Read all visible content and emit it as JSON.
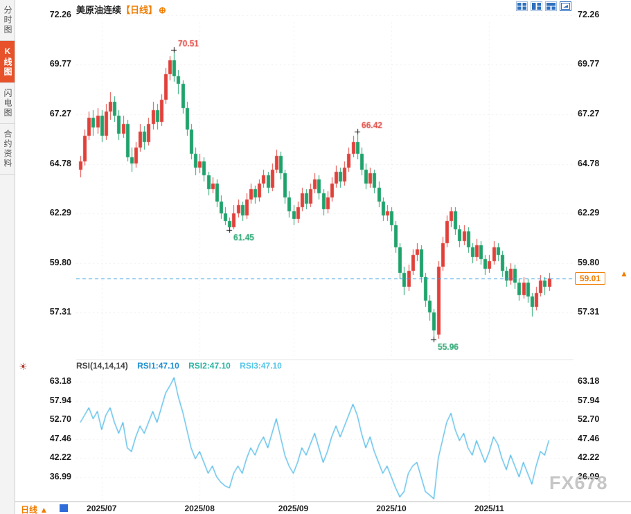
{
  "app": {
    "sidebar": {
      "tabs": [
        {
          "label": "分时图",
          "active": false
        },
        {
          "label": "K线图",
          "active": true
        },
        {
          "label": "闪电图",
          "active": false
        },
        {
          "label": "合约资料",
          "active": false
        }
      ]
    },
    "header": {
      "symbol": "美原油连续",
      "period_bracket": "【日线】",
      "add_label": "⊕"
    },
    "bottom": {
      "period_label": "日线 ▲"
    },
    "watermark": "FX678",
    "price_arrow": "▲"
  },
  "rsi_header": {
    "name": "RSI(14,14,14)",
    "r1": "RSI1:47.10",
    "r2": "RSI2:47.10",
    "r3": "RSI3:47.10"
  },
  "chart_data": {
    "type": "candlestick",
    "symbol": "美原油连续",
    "period": "日线",
    "price_axis": [
      72.26,
      69.77,
      67.27,
      64.78,
      62.29,
      59.8,
      57.31
    ],
    "rsi_axis": [
      63.18,
      57.94,
      52.7,
      47.46,
      42.22,
      36.99
    ],
    "months": [
      {
        "label": "2025/07",
        "index": 5
      },
      {
        "label": "2025/08",
        "index": 28
      },
      {
        "label": "2025/09",
        "index": 50
      },
      {
        "label": "2025/10",
        "index": 73
      },
      {
        "label": "2025/11",
        "index": 96
      }
    ],
    "current_price": 59.01,
    "current_price_label": "59.01",
    "annotations": [
      {
        "index": 22,
        "price": 70.51,
        "text": "70.51",
        "kind": "high"
      },
      {
        "index": 35,
        "price": 61.45,
        "text": "61.45",
        "kind": "low"
      },
      {
        "index": 65,
        "price": 66.42,
        "text": "66.42",
        "kind": "high"
      },
      {
        "index": 83,
        "price": 55.96,
        "text": "55.96",
        "kind": "low"
      }
    ],
    "candles": [
      [
        64.5,
        65.2,
        64.1,
        64.9
      ],
      [
        64.9,
        66.5,
        64.7,
        66.2
      ],
      [
        66.2,
        67.4,
        66.0,
        67.1
      ],
      [
        67.1,
        67.5,
        66.2,
        66.6
      ],
      [
        66.6,
        67.6,
        66.3,
        67.2
      ],
      [
        67.2,
        67.5,
        65.9,
        66.2
      ],
      [
        66.2,
        67.8,
        66.0,
        67.4
      ],
      [
        67.4,
        68.4,
        67.0,
        67.9
      ],
      [
        67.9,
        68.2,
        66.9,
        67.2
      ],
      [
        67.2,
        67.5,
        66.0,
        66.3
      ],
      [
        66.3,
        67.2,
        66.1,
        66.8
      ],
      [
        66.8,
        67.0,
        64.9,
        65.1
      ],
      [
        65.1,
        65.6,
        64.4,
        64.8
      ],
      [
        64.8,
        65.9,
        64.6,
        65.6
      ],
      [
        65.6,
        66.8,
        65.4,
        66.4
      ],
      [
        66.4,
        66.7,
        65.5,
        65.9
      ],
      [
        65.9,
        67.1,
        65.7,
        66.8
      ],
      [
        66.8,
        67.9,
        66.5,
        67.5
      ],
      [
        67.5,
        67.8,
        66.5,
        66.9
      ],
      [
        66.9,
        68.3,
        66.7,
        68.0
      ],
      [
        68.0,
        69.6,
        67.8,
        69.3
      ],
      [
        69.3,
        70.2,
        69.0,
        70.0
      ],
      [
        70.0,
        70.51,
        68.9,
        69.2
      ],
      [
        69.2,
        69.5,
        68.3,
        68.8
      ],
      [
        68.8,
        69.0,
        67.3,
        67.6
      ],
      [
        67.6,
        67.9,
        66.2,
        66.5
      ],
      [
        66.5,
        66.8,
        65.0,
        65.3
      ],
      [
        65.3,
        65.6,
        64.2,
        64.6
      ],
      [
        64.6,
        65.3,
        64.3,
        64.9
      ],
      [
        64.9,
        65.1,
        63.9,
        64.2
      ],
      [
        64.2,
        64.4,
        63.2,
        63.5
      ],
      [
        63.5,
        64.1,
        63.3,
        63.8
      ],
      [
        63.8,
        64.0,
        62.6,
        62.9
      ],
      [
        62.9,
        63.2,
        62.0,
        62.3
      ],
      [
        62.3,
        62.6,
        61.7,
        61.9
      ],
      [
        61.9,
        62.1,
        61.45,
        61.6
      ],
      [
        61.6,
        62.7,
        61.5,
        62.3
      ],
      [
        62.3,
        63.0,
        62.1,
        62.7
      ],
      [
        62.7,
        62.9,
        61.9,
        62.2
      ],
      [
        62.2,
        63.3,
        62.0,
        63.0
      ],
      [
        63.0,
        63.8,
        62.8,
        63.5
      ],
      [
        63.5,
        63.7,
        62.8,
        63.1
      ],
      [
        63.1,
        64.0,
        62.9,
        63.8
      ],
      [
        63.8,
        64.5,
        63.6,
        64.2
      ],
      [
        64.2,
        64.4,
        63.3,
        63.6
      ],
      [
        63.6,
        64.8,
        63.4,
        64.5
      ],
      [
        64.5,
        65.5,
        64.3,
        65.2
      ],
      [
        65.2,
        65.4,
        64.0,
        64.3
      ],
      [
        64.3,
        64.5,
        62.8,
        63.1
      ],
      [
        63.1,
        63.4,
        62.1,
        62.4
      ],
      [
        62.4,
        62.7,
        61.7,
        62.0
      ],
      [
        62.0,
        62.9,
        61.8,
        62.6
      ],
      [
        62.6,
        63.6,
        62.4,
        63.3
      ],
      [
        63.3,
        63.5,
        62.5,
        62.8
      ],
      [
        62.8,
        63.8,
        62.6,
        63.5
      ],
      [
        63.5,
        64.3,
        63.3,
        64.0
      ],
      [
        64.0,
        64.2,
        63.0,
        63.3
      ],
      [
        63.3,
        63.5,
        62.2,
        62.5
      ],
      [
        62.5,
        63.4,
        62.3,
        63.1
      ],
      [
        63.1,
        64.1,
        62.9,
        63.8
      ],
      [
        63.8,
        64.7,
        63.6,
        64.4
      ],
      [
        64.4,
        64.6,
        63.6,
        63.9
      ],
      [
        63.9,
        64.9,
        63.7,
        64.6
      ],
      [
        64.6,
        65.6,
        64.4,
        65.3
      ],
      [
        65.3,
        66.2,
        65.1,
        65.9
      ],
      [
        65.9,
        66.42,
        65.0,
        65.3
      ],
      [
        65.3,
        65.6,
        64.2,
        64.5
      ],
      [
        64.5,
        64.8,
        63.5,
        63.8
      ],
      [
        63.8,
        64.6,
        63.6,
        64.3
      ],
      [
        64.3,
        64.5,
        63.3,
        63.6
      ],
      [
        63.6,
        63.9,
        62.6,
        62.9
      ],
      [
        62.9,
        63.1,
        61.9,
        62.2
      ],
      [
        62.2,
        62.7,
        61.9,
        62.4
      ],
      [
        62.4,
        62.6,
        61.4,
        61.7
      ],
      [
        61.7,
        61.9,
        60.3,
        60.6
      ],
      [
        60.6,
        60.8,
        59.0,
        59.3
      ],
      [
        59.3,
        59.6,
        58.2,
        58.6
      ],
      [
        58.6,
        59.7,
        58.4,
        59.4
      ],
      [
        59.4,
        60.5,
        59.2,
        60.2
      ],
      [
        60.2,
        60.8,
        59.9,
        60.5
      ],
      [
        60.5,
        60.7,
        58.8,
        59.1
      ],
      [
        59.1,
        59.3,
        57.6,
        57.9
      ],
      [
        57.9,
        58.2,
        56.9,
        57.3
      ],
      [
        57.3,
        57.5,
        55.96,
        56.4
      ],
      [
        56.2,
        59.9,
        56.0,
        59.6
      ],
      [
        59.6,
        61.1,
        59.4,
        60.8
      ],
      [
        60.8,
        62.2,
        60.6,
        61.9
      ],
      [
        61.9,
        62.6,
        61.6,
        62.4
      ],
      [
        62.4,
        62.6,
        61.2,
        61.5
      ],
      [
        61.5,
        61.7,
        60.6,
        60.9
      ],
      [
        60.9,
        61.7,
        60.7,
        61.4
      ],
      [
        61.4,
        61.6,
        60.3,
        60.6
      ],
      [
        60.6,
        60.8,
        59.8,
        60.1
      ],
      [
        60.1,
        61.0,
        59.9,
        60.7
      ],
      [
        60.7,
        60.9,
        59.7,
        60.0
      ],
      [
        60.0,
        60.2,
        59.2,
        59.5
      ],
      [
        59.5,
        60.2,
        59.3,
        59.9
      ],
      [
        59.9,
        60.9,
        59.7,
        60.6
      ],
      [
        60.6,
        60.8,
        59.9,
        60.2
      ],
      [
        60.2,
        60.4,
        59.1,
        59.4
      ],
      [
        59.4,
        59.6,
        58.6,
        58.9
      ],
      [
        58.9,
        59.8,
        58.7,
        59.5
      ],
      [
        59.5,
        59.7,
        58.5,
        58.8
      ],
      [
        58.8,
        59.0,
        57.9,
        58.2
      ],
      [
        58.2,
        59.1,
        58.0,
        58.8
      ],
      [
        58.8,
        59.0,
        57.8,
        58.1
      ],
      [
        58.1,
        58.3,
        57.1,
        57.6
      ],
      [
        57.6,
        58.6,
        57.4,
        58.3
      ],
      [
        58.3,
        59.2,
        58.1,
        58.9
      ],
      [
        58.9,
        59.1,
        58.2,
        58.6
      ],
      [
        58.6,
        59.3,
        58.4,
        59.01
      ]
    ],
    "rsi": [
      52,
      54,
      56,
      53,
      55,
      50,
      54,
      56,
      52,
      49,
      52,
      45,
      44,
      48,
      51,
      49,
      52,
      55,
      52,
      56,
      60,
      62,
      64.3,
      59,
      55,
      50,
      45,
      42,
      44,
      41,
      38,
      40,
      37,
      35.5,
      34.5,
      34,
      38,
      40,
      38,
      42,
      45,
      43,
      46,
      48,
      45,
      49,
      53,
      48,
      43,
      40,
      38,
      41,
      45,
      43,
      46,
      49,
      45,
      41,
      44,
      48,
      51,
      48,
      51,
      54,
      57,
      54,
      49,
      45,
      48,
      44,
      41,
      38,
      40,
      37,
      34,
      31.5,
      33,
      38,
      40,
      41,
      37,
      33,
      32,
      31,
      42,
      47,
      52,
      54.5,
      50,
      47,
      49,
      45,
      43,
      47,
      44,
      41,
      44,
      48,
      46,
      42,
      39,
      43,
      40,
      37,
      41,
      38,
      35,
      40,
      44,
      43,
      47.1
    ],
    "colors": {
      "up": "#e0413a",
      "down": "#1fa26b",
      "rsi_line": "#4db9e8",
      "dashed_line": "#3a9fe0",
      "accent": "#f07c00",
      "rsi1": "#1f8fd0",
      "rsi2": "#2bb3a0",
      "rsi3": "#59c6e8",
      "annotation_high": "#e0413a",
      "annotation_low": "#1fa26b"
    }
  }
}
